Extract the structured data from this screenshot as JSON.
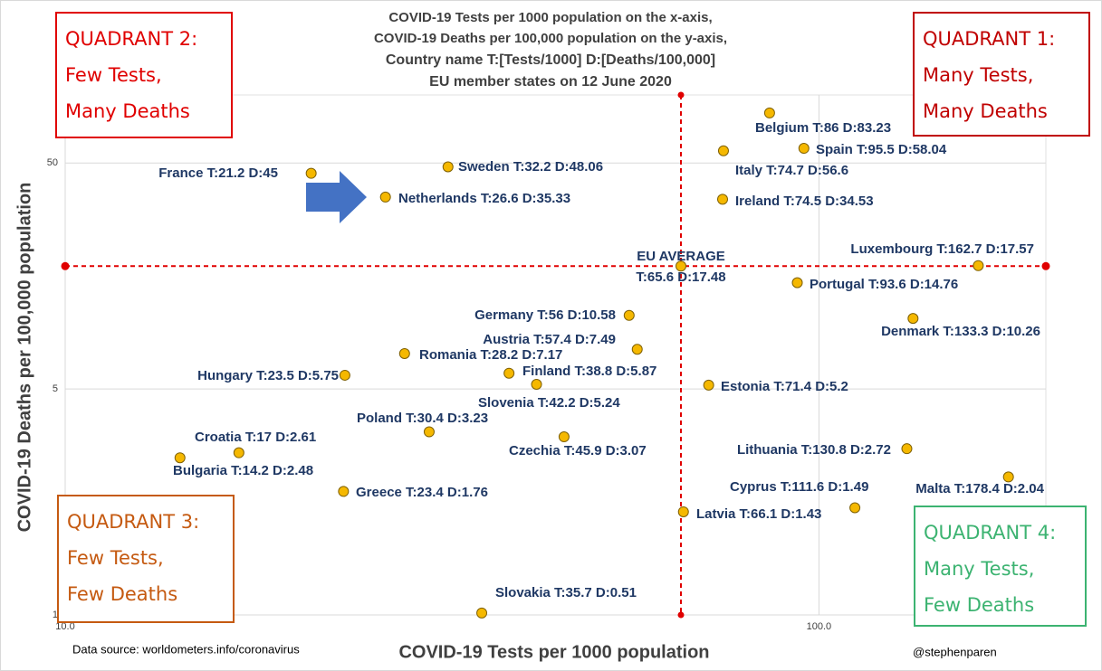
{
  "chart_data": {
    "type": "scatter",
    "title": [
      "COVID-19 Tests per 1000 population on the x-axis,",
      "COVID-19 Deaths per 100,000 population on the y-axis,",
      "Country name T:[Tests/1000] D:[Deaths/100,000]",
      "EU member states on 12 June 2020"
    ],
    "x_label": "COVID-19 Tests per 1000 population",
    "y_label": "COVID-19 Deaths per 100,000 population",
    "source": "Data source: worldometers.info/coronavirus",
    "credit": "@stephenparen",
    "log_x": true,
    "log_y": true,
    "xlim": [
      10,
      200
    ],
    "ylim": [
      0.5,
      100
    ],
    "xticks": [
      {
        "value": 10,
        "label": "10.0"
      },
      {
        "value": 100,
        "label": "100.0"
      }
    ],
    "yticks": [
      {
        "value": 0.5,
        "label": "1"
      },
      5,
      50
    ],
    "grid": true,
    "series": [
      {
        "color": "#f5b800",
        "x": [
          86,
          95.5,
          74.7,
          74.5,
          21.2,
          32.2,
          26.6,
          162.7,
          93.6,
          133.3,
          56,
          57.4,
          28.2,
          38.8,
          23.5,
          42.2,
          71.4,
          30.4,
          45.9,
          17,
          130.8,
          14.2,
          178.4,
          111.6,
          23.4,
          66.1,
          35.7
        ],
        "values": [
          83.23,
          58.04,
          56.6,
          34.53,
          45,
          48.06,
          35.33,
          17.57,
          14.76,
          10.26,
          10.58,
          7.49,
          7.17,
          5.87,
          5.75,
          5.24,
          5.2,
          3.23,
          3.07,
          2.61,
          2.72,
          2.48,
          2.04,
          1.49,
          1.76,
          1.43,
          0.51
        ],
        "labels": [
          "Belgium T:86 D:83.23",
          "Spain T:95.5 D:58.04",
          "Italy T:74.7 D:56.6",
          "Ireland T:74.5 D:34.53",
          "France T:21.2 D:45",
          "Sweden T:32.2 D:48.06",
          "Netherlands T:26.6 D:35.33",
          "Luxembourg T:162.7 D:17.57",
          "Portugal T:93.6 D:14.76",
          "Denmark T:133.3 D:10.26",
          "Germany T:56 D:10.58",
          "Austria T:57.4 D:7.49",
          "Romania T:28.2 D:7.17",
          "Finland T:38.8 D:5.87",
          "Hungary T:23.5 D:5.75",
          "Slovenia T:42.2 D:5.24",
          "Estonia T:71.4 D:5.2",
          "Poland T:30.4 D:3.23",
          "Czechia T:45.9 D:3.07",
          "Croatia T:17 D:2.61",
          "Lithuania T:130.8 D:2.72",
          "Bulgaria T:14.2 D:2.48",
          "Malta T:178.4 D:2.04",
          "Cyprus T:111.6 D:1.49",
          "Greece T:23.4 D:1.76",
          "Latvia T:66.1 D:1.43",
          "Slovakia T:35.7 D:0.51"
        ]
      }
    ],
    "average": {
      "x": 65.6,
      "y": 17.48,
      "color": "#e00000",
      "label": [
        "EU AVERAGE",
        "T:65.6 D:17.48"
      ]
    },
    "quadrants": [
      {
        "lines": [
          "QUADRANT 2:",
          "Few Tests,",
          "Many Deaths"
        ],
        "color": "#e00000"
      },
      {
        "lines": [
          "QUADRANT 1:",
          "Many Tests,",
          "Many Deaths"
        ],
        "color": "#c00000"
      },
      {
        "lines": [
          "QUADRANT 3:",
          "Few Tests,",
          "Few Deaths"
        ],
        "color": "#c55a11"
      },
      {
        "lines": [
          "QUADRANT 4:",
          "Many Tests,",
          "Few Deaths"
        ],
        "color": "#3cb371"
      }
    ]
  }
}
